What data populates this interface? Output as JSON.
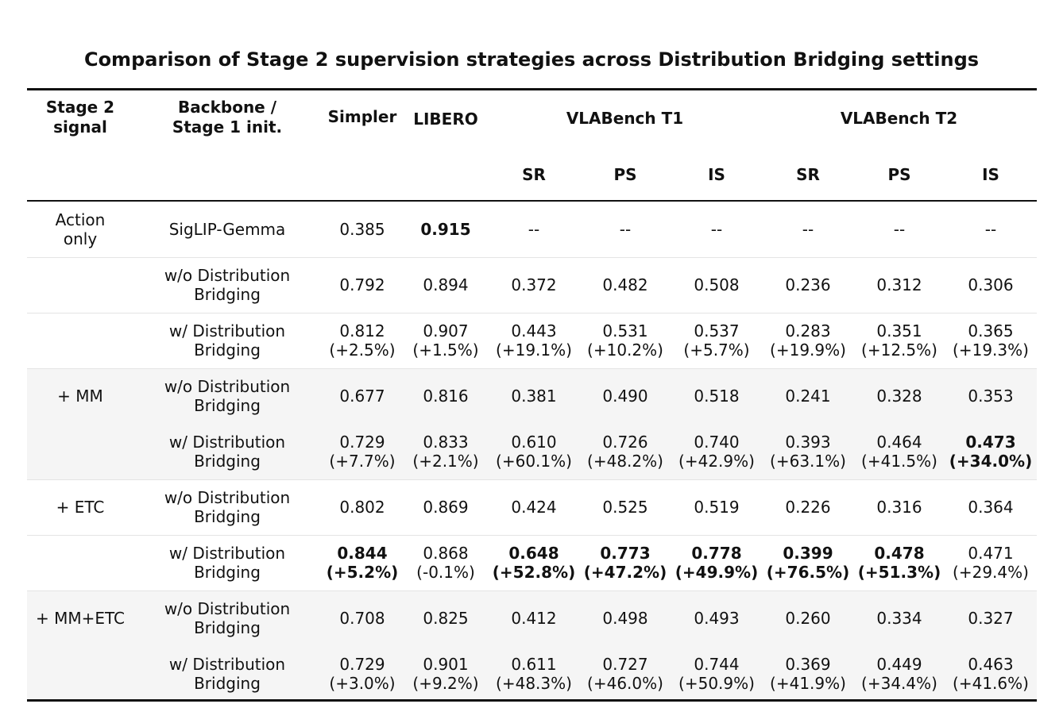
{
  "title": "Comparison of Stage 2 supervision strategies across Distribution Bridging settings",
  "headers": {
    "signal": [
      "Stage 2",
      "signal"
    ],
    "backbone": [
      "Backbone /",
      "Stage 1 init."
    ],
    "simpler": "Simpler",
    "libero": "LIBERO",
    "t1": "VLABench T1",
    "t2": "VLABench T2",
    "metrics": [
      "SR",
      "PS",
      "IS",
      "SR",
      "PS",
      "IS"
    ]
  },
  "rows": [
    {
      "signal": [
        "Action",
        "only"
      ],
      "backbone": [
        "SigLIP-Gemma"
      ],
      "shade": false,
      "values": [
        [
          "0.385"
        ],
        [
          "0.915"
        ],
        [
          "--"
        ],
        [
          "--"
        ],
        [
          "--"
        ],
        [
          "--"
        ],
        [
          "--"
        ],
        [
          "--"
        ]
      ],
      "bold": [
        false,
        true,
        false,
        false,
        false,
        false,
        false,
        false
      ]
    },
    {
      "signal": [],
      "backbone": [
        "w/o Distribution",
        "Bridging"
      ],
      "shade": false,
      "values": [
        [
          "0.792"
        ],
        [
          "0.894"
        ],
        [
          "0.372"
        ],
        [
          "0.482"
        ],
        [
          "0.508"
        ],
        [
          "0.236"
        ],
        [
          "0.312"
        ],
        [
          "0.306"
        ]
      ],
      "bold": [
        false,
        false,
        false,
        false,
        false,
        false,
        false,
        false
      ]
    },
    {
      "signal": [],
      "backbone": [
        "w/ Distribution",
        "Bridging"
      ],
      "shade": false,
      "values": [
        [
          "0.812",
          "(+2.5%)"
        ],
        [
          "0.907",
          "(+1.5%)"
        ],
        [
          "0.443",
          "(+19.1%)"
        ],
        [
          "0.531",
          "(+10.2%)"
        ],
        [
          "0.537",
          "(+5.7%)"
        ],
        [
          "0.283",
          "(+19.9%)"
        ],
        [
          "0.351",
          "(+12.5%)"
        ],
        [
          "0.365",
          "(+19.3%)"
        ]
      ],
      "bold": [
        false,
        false,
        false,
        false,
        false,
        false,
        false,
        false
      ]
    },
    {
      "signal": [
        "+ MM"
      ],
      "backbone": [
        "w/o Distribution",
        "Bridging"
      ],
      "shade": true,
      "values": [
        [
          "0.677"
        ],
        [
          "0.816"
        ],
        [
          "0.381"
        ],
        [
          "0.490"
        ],
        [
          "0.518"
        ],
        [
          "0.241"
        ],
        [
          "0.328"
        ],
        [
          "0.353"
        ]
      ],
      "bold": [
        false,
        false,
        false,
        false,
        false,
        false,
        false,
        false
      ]
    },
    {
      "signal": [],
      "backbone": [
        "w/ Distribution",
        "Bridging"
      ],
      "shade": true,
      "values": [
        [
          "0.729",
          "(+7.7%)"
        ],
        [
          "0.833",
          "(+2.1%)"
        ],
        [
          "0.610",
          "(+60.1%)"
        ],
        [
          "0.726",
          "(+48.2%)"
        ],
        [
          "0.740",
          "(+42.9%)"
        ],
        [
          "0.393",
          "(+63.1%)"
        ],
        [
          "0.464",
          "(+41.5%)"
        ],
        [
          "0.473",
          "(+34.0%)"
        ]
      ],
      "bold": [
        false,
        false,
        false,
        false,
        false,
        false,
        false,
        true
      ]
    },
    {
      "signal": [
        "+ ETC"
      ],
      "backbone": [
        "w/o Distribution",
        "Bridging"
      ],
      "shade": false,
      "values": [
        [
          "0.802"
        ],
        [
          "0.869"
        ],
        [
          "0.424"
        ],
        [
          "0.525"
        ],
        [
          "0.519"
        ],
        [
          "0.226"
        ],
        [
          "0.316"
        ],
        [
          "0.364"
        ]
      ],
      "bold": [
        false,
        false,
        false,
        false,
        false,
        false,
        false,
        false
      ]
    },
    {
      "signal": [],
      "backbone": [
        "w/ Distribution",
        "Bridging"
      ],
      "shade": false,
      "values": [
        [
          "0.844",
          "(+5.2%)"
        ],
        [
          "0.868",
          "(-0.1%)"
        ],
        [
          "0.648",
          "(+52.8%)"
        ],
        [
          "0.773",
          "(+47.2%)"
        ],
        [
          "0.778",
          "(+49.9%)"
        ],
        [
          "0.399",
          "(+76.5%)"
        ],
        [
          "0.478",
          "(+51.3%)"
        ],
        [
          "0.471",
          "(+29.4%)"
        ]
      ],
      "bold": [
        true,
        false,
        true,
        true,
        true,
        true,
        true,
        false
      ]
    },
    {
      "signal": [
        "+ MM+ETC"
      ],
      "backbone": [
        "w/o Distribution",
        "Bridging"
      ],
      "shade": true,
      "values": [
        [
          "0.708"
        ],
        [
          "0.825"
        ],
        [
          "0.412"
        ],
        [
          "0.498"
        ],
        [
          "0.493"
        ],
        [
          "0.260"
        ],
        [
          "0.334"
        ],
        [
          "0.327"
        ]
      ],
      "bold": [
        false,
        false,
        false,
        false,
        false,
        false,
        false,
        false
      ]
    },
    {
      "signal": [],
      "backbone": [
        "w/ Distribution",
        "Bridging"
      ],
      "shade": true,
      "values": [
        [
          "0.729",
          "(+3.0%)"
        ],
        [
          "0.901",
          "(+9.2%)"
        ],
        [
          "0.611",
          "(+48.3%)"
        ],
        [
          "0.727",
          "(+46.0%)"
        ],
        [
          "0.744",
          "(+50.9%)"
        ],
        [
          "0.369",
          "(+41.9%)"
        ],
        [
          "0.449",
          "(+34.4%)"
        ],
        [
          "0.463",
          "(+41.6%)"
        ]
      ],
      "bold": [
        false,
        false,
        false,
        false,
        false,
        false,
        false,
        false
      ]
    }
  ]
}
